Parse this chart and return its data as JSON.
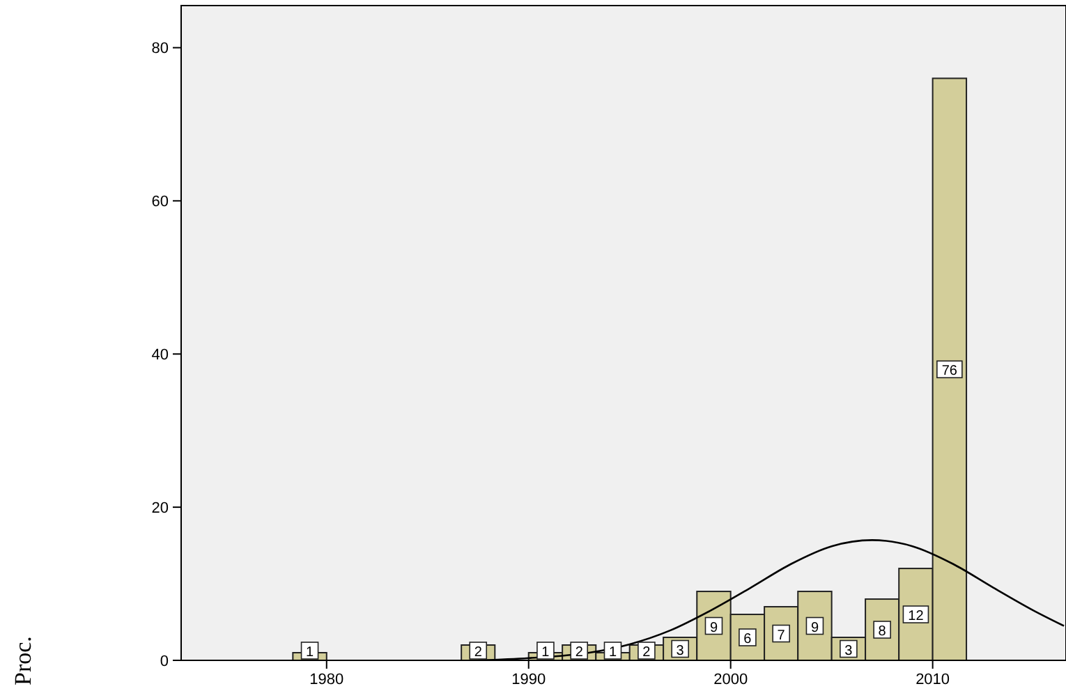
{
  "chart_data": {
    "type": "histogram",
    "ylabel": "Proc.",
    "bins": [
      1978.33,
      1980,
      1981.67,
      1983.33,
      1985,
      1986.67,
      1988.33,
      1990,
      1991.67,
      1993.33,
      1995,
      1996.67,
      1998.33,
      2000,
      2001.67,
      2003.33,
      2005,
      2006.67,
      2008.33,
      2010,
      2011.67
    ],
    "series": [
      {
        "color": "#d3ce9a",
        "values": [
          1,
          0,
          0,
          0,
          0,
          2,
          0,
          1,
          2,
          1,
          2,
          3,
          9,
          6,
          7,
          9,
          3,
          8,
          12,
          76
        ],
        "value_labels": [
          "1",
          null,
          null,
          null,
          null,
          "2",
          null,
          "1",
          "2",
          "1",
          "2",
          "3",
          "9",
          "6",
          "7",
          "9",
          "3",
          "8",
          "12",
          "76"
        ]
      },
      {
        "type": "line",
        "color": "#000000",
        "x": [
          1987.5,
          1990,
          1993,
          1995,
          1997,
          1999,
          2001,
          2003,
          2005,
          2007,
          2009,
          2011,
          2013,
          2015,
          2016.5
        ],
        "values": [
          0,
          0.3,
          1,
          2.1,
          3.9,
          6.5,
          9.5,
          12.6,
          14.9,
          15.7,
          14.9,
          12.6,
          9.5,
          6.5,
          4.5
        ]
      }
    ],
    "marker": "none",
    "grid": false,
    "xlim": [
      1972.8,
      2016.6
    ],
    "ylim": [
      0,
      85.5
    ],
    "xticks": [
      1980,
      1990,
      2000,
      2010
    ],
    "yticks": [
      0,
      20,
      40,
      60,
      80
    ]
  }
}
